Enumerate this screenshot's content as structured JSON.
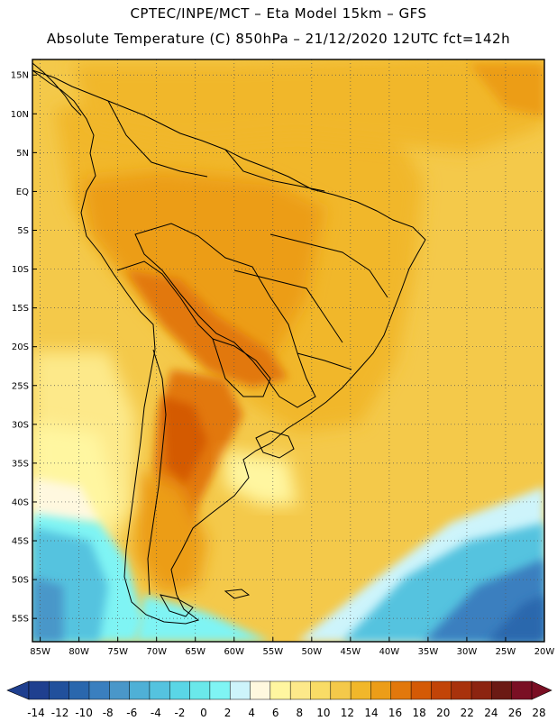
{
  "header": {
    "line1": "CPTEC/INPE/MCT –  Eta Model 15km – GFS",
    "line2": "Absolute Temperature (C) 850hPa – 21/12/2020 12UTC fct=142h"
  },
  "map": {
    "region": "South America",
    "lat_range": [
      -58,
      17
    ],
    "lon_range": [
      -86,
      -20
    ],
    "lat_labels": [
      "15N",
      "10N",
      "5N",
      "EQ",
      "5S",
      "10S",
      "15S",
      "20S",
      "25S",
      "30S",
      "35S",
      "40S",
      "45S",
      "50S",
      "55S"
    ],
    "lat_values": [
      15,
      10,
      5,
      0,
      -5,
      -10,
      -15,
      -20,
      -25,
      -30,
      -35,
      -40,
      -45,
      -50,
      -55
    ],
    "lon_labels": [
      "85W",
      "80W",
      "75W",
      "70W",
      "65W",
      "60W",
      "55W",
      "50W",
      "45W",
      "40W",
      "35W",
      "30W",
      "25W",
      "20W"
    ],
    "lon_values": [
      -85,
      -80,
      -75,
      -70,
      -65,
      -60,
      -55,
      -50,
      -45,
      -40,
      -35,
      -30,
      -25,
      -20
    ]
  },
  "colorbar": {
    "labels": [
      "-14",
      "-12",
      "-10",
      "-8",
      "-6",
      "-4",
      "-2",
      "0",
      "2",
      "4",
      "6",
      "8",
      "10",
      "12",
      "14",
      "16",
      "18",
      "20",
      "22",
      "24",
      "26",
      "28"
    ],
    "colors": [
      "#1f3f8f",
      "#21509c",
      "#2a67ad",
      "#3a7fbf",
      "#4a97c9",
      "#4fb0d6",
      "#55c3df",
      "#5ad6e6",
      "#6ae8ea",
      "#7ff4f4",
      "#cdf4fb",
      "#fff8df",
      "#fff6a0",
      "#fde98a",
      "#f9dc66",
      "#f4c94a",
      "#f1b72a",
      "#ec9d18",
      "#e2780c",
      "#d45a06",
      "#c24408",
      "#a8320c",
      "#8c2410",
      "#6b1a14",
      "#7a0f24"
    ]
  }
}
